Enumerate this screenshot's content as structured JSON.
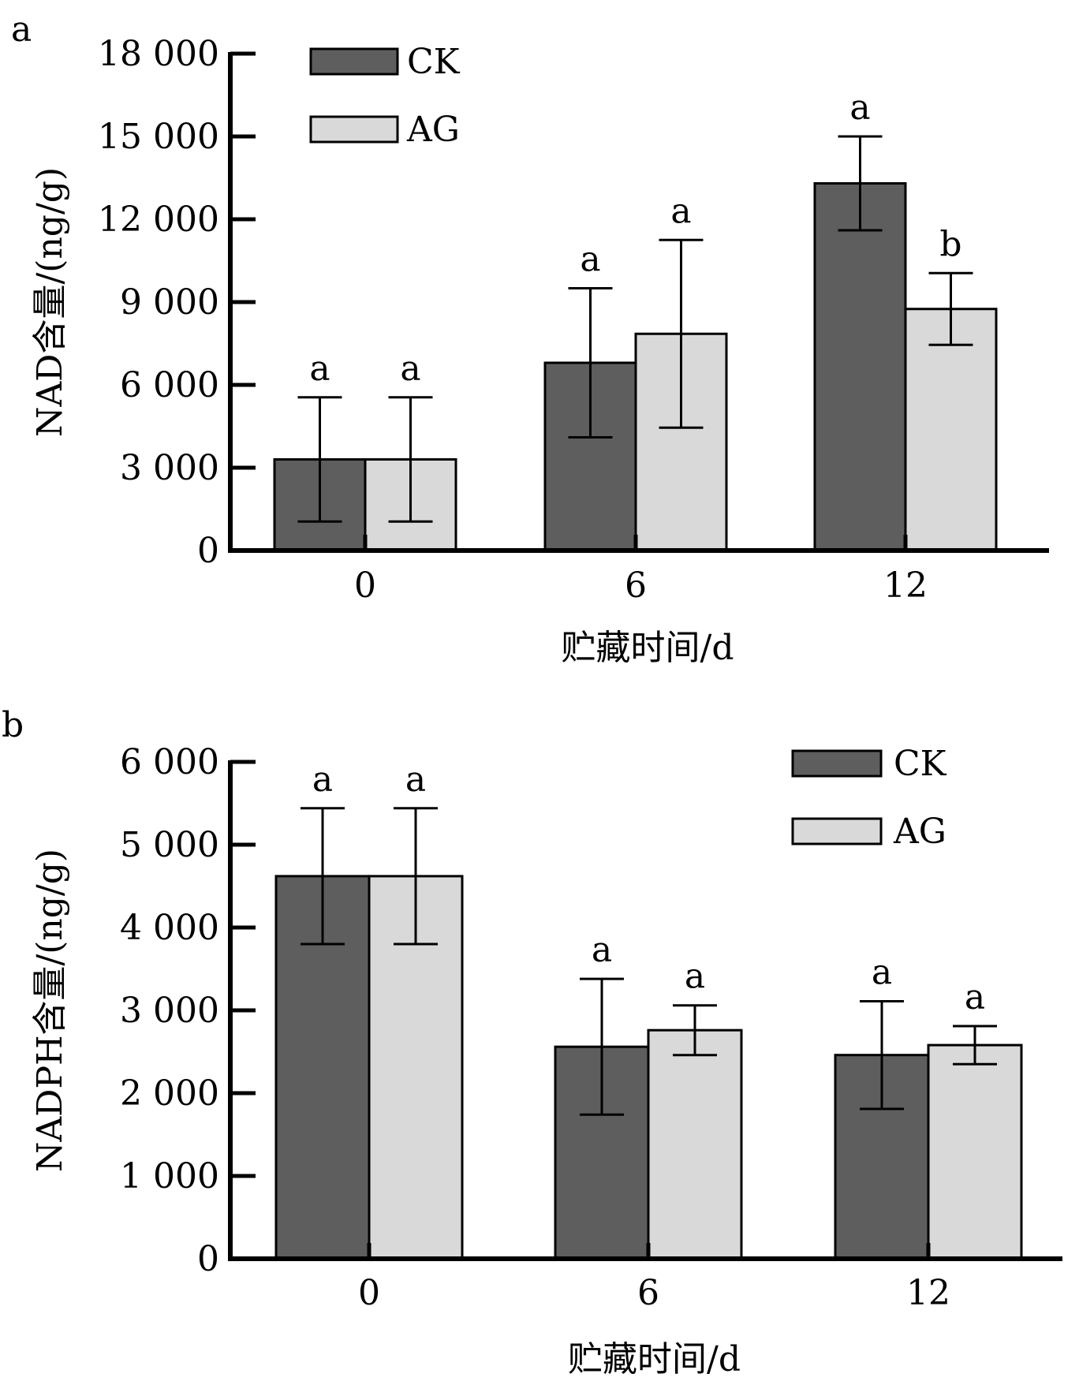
{
  "chart_data": [
    {
      "panel": "a",
      "type": "bar",
      "categories": [
        "0",
        "6",
        "12"
      ],
      "xlabel": "贮藏时间/d",
      "ylabel": "NAD含量/(ng/g)",
      "ylim": [
        0,
        18000
      ],
      "yticks": [
        0,
        3000,
        6000,
        9000,
        12000,
        15000,
        18000
      ],
      "ytick_labels": [
        "0",
        "3 000",
        "6 000",
        "9 000",
        "12 000",
        "15 000",
        "18 000"
      ],
      "legend_position": "top-left",
      "series": [
        {
          "name": "CK",
          "color": "#5e5e5e",
          "values": [
            3300,
            6800,
            13300
          ],
          "errors": [
            2250,
            2700,
            1700
          ],
          "sig": [
            "a",
            "a",
            "a"
          ]
        },
        {
          "name": "AG",
          "color": "#d9d9d9",
          "values": [
            3300,
            7850,
            8750
          ],
          "errors": [
            2250,
            3400,
            1300
          ],
          "sig": [
            "a",
            "a",
            "b"
          ]
        }
      ]
    },
    {
      "panel": "b",
      "type": "bar",
      "categories": [
        "0",
        "6",
        "12"
      ],
      "xlabel": "贮藏时间/d",
      "ylabel": "NADPH含量/(ng/g)",
      "ylim": [
        0,
        6000
      ],
      "yticks": [
        0,
        1000,
        2000,
        3000,
        4000,
        5000,
        6000
      ],
      "ytick_labels": [
        "0",
        "1 000",
        "2 000",
        "3 000",
        "4 000",
        "5 000",
        "6 000"
      ],
      "legend_position": "top-right",
      "series": [
        {
          "name": "CK",
          "color": "#5e5e5e",
          "values": [
            4620,
            2560,
            2460
          ],
          "errors": [
            820,
            820,
            650
          ],
          "sig": [
            "a",
            "a",
            "a"
          ]
        },
        {
          "name": "AG",
          "color": "#d9d9d9",
          "values": [
            4620,
            2760,
            2580
          ],
          "errors": [
            820,
            300,
            230
          ],
          "sig": [
            "a",
            "a",
            "a"
          ]
        }
      ]
    }
  ]
}
